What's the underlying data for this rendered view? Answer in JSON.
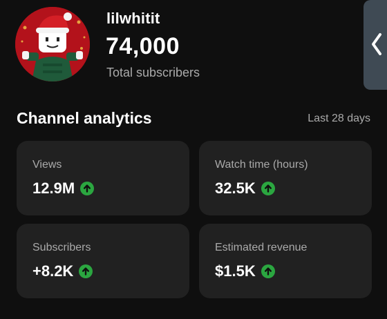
{
  "channel": {
    "name": "lilwhitit",
    "subscriber_count": "74,000",
    "subscriber_label": "Total subscribers"
  },
  "analytics": {
    "title": "Channel analytics",
    "range": "Last 28 days",
    "cards": [
      {
        "label": "Views",
        "value": "12.9M",
        "trend": "up"
      },
      {
        "label": "Watch time (hours)",
        "value": "32.5K",
        "trend": "up"
      },
      {
        "label": "Subscribers",
        "value": "+8.2K",
        "trend": "up"
      },
      {
        "label": "Estimated revenue",
        "value": "$1.5K",
        "trend": "up"
      }
    ]
  },
  "icons": {
    "trend": "arrow-up-circle-icon",
    "side": "chevron-left-icon"
  },
  "colors": {
    "background": "#0f0f0f",
    "card": "#212121",
    "trend_up": "#2ba640",
    "muted_text": "#aaaaaa"
  }
}
